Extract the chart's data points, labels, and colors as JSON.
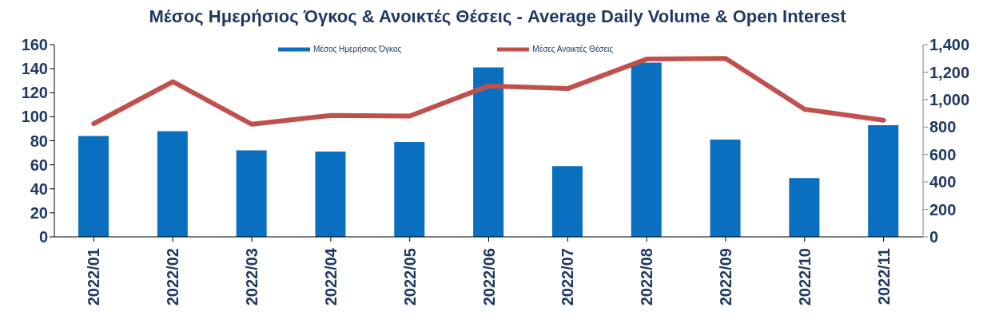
{
  "chart_data": {
    "type": "bar",
    "title": "Μέσος Ημερήσιος Όγκος & Ανοικτές Θέσεις - Average Daily Volume & Open Interest",
    "categories": [
      "2022/01",
      "2022/02",
      "2022/03",
      "2022/04",
      "2022/05",
      "2022/06",
      "2022/07",
      "2022/08",
      "2022/09",
      "2022/10",
      "2022/11"
    ],
    "series": [
      {
        "name": "Μέσος Ημερήσιος Όγκος",
        "type": "bar",
        "color": "#0b6fc0",
        "values": [
          84,
          88,
          72,
          71,
          79,
          141,
          59,
          145,
          81,
          49,
          93
        ]
      },
      {
        "name": "Μέσες Ανοικτές Θέσεις",
        "type": "line",
        "axis": "y2",
        "color": "#c0504d",
        "values": [
          825,
          1130,
          820,
          885,
          880,
          1100,
          1080,
          1295,
          1300,
          930,
          850
        ]
      }
    ],
    "ylim": [
      0,
      160
    ],
    "yticks": [
      0,
      20,
      40,
      60,
      80,
      100,
      120,
      140,
      160
    ],
    "y2lim": [
      0,
      1400
    ],
    "y2ticks": [
      {
        "value": 0,
        "label": "0"
      },
      {
        "value": 200,
        "label": "200"
      },
      {
        "value": 400,
        "label": "400"
      },
      {
        "value": 600,
        "label": "600"
      },
      {
        "value": 800,
        "label": "800"
      },
      {
        "value": 1000,
        "label": "1,000"
      },
      {
        "value": 1200,
        "label": "1,200"
      },
      {
        "value": 1400,
        "label": "1,400"
      }
    ],
    "grid": false,
    "legend": "top",
    "marker": "none",
    "line_style": "solid"
  }
}
